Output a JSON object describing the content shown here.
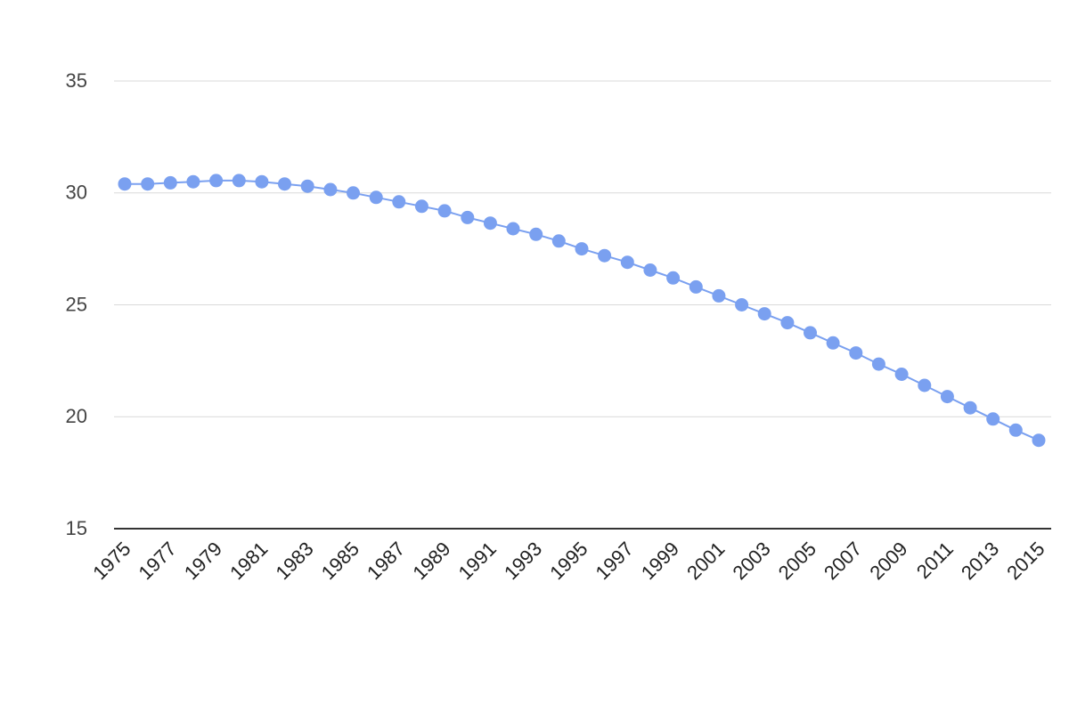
{
  "chart_data": {
    "type": "line",
    "title": "",
    "xlabel": "",
    "ylabel": "",
    "x": [
      1975,
      1976,
      1977,
      1978,
      1979,
      1980,
      1981,
      1982,
      1983,
      1984,
      1985,
      1986,
      1987,
      1988,
      1989,
      1990,
      1991,
      1992,
      1993,
      1994,
      1995,
      1996,
      1997,
      1998,
      1999,
      2000,
      2001,
      2002,
      2003,
      2004,
      2005,
      2006,
      2007,
      2008,
      2009,
      2010,
      2011,
      2012,
      2013,
      2014,
      2015
    ],
    "x_tick_labels": [
      "1975",
      "1977",
      "1979",
      "1981",
      "1983",
      "1985",
      "1987",
      "1989",
      "1991",
      "1993",
      "1995",
      "1997",
      "1999",
      "2001",
      "2003",
      "2005",
      "2007",
      "2009",
      "2011",
      "2013",
      "2015"
    ],
    "y_tick_labels": [
      "35",
      "30",
      "25",
      "20",
      "15"
    ],
    "y_ticks": [
      35,
      30,
      25,
      20,
      15
    ],
    "ylim": [
      15,
      35
    ],
    "grid": true,
    "legend": "none",
    "series": [
      {
        "color": "#7aa0f0",
        "values": [
          30.4,
          30.4,
          30.45,
          30.5,
          30.55,
          30.55,
          30.5,
          30.4,
          30.3,
          30.15,
          30.0,
          29.8,
          29.6,
          29.4,
          29.2,
          28.9,
          28.65,
          28.4,
          28.15,
          27.85,
          27.5,
          27.2,
          26.9,
          26.55,
          26.2,
          25.8,
          25.4,
          25.0,
          24.6,
          24.2,
          23.75,
          23.3,
          22.85,
          22.35,
          21.9,
          21.4,
          20.9,
          20.4,
          19.9,
          19.4,
          18.95
        ]
      }
    ]
  }
}
